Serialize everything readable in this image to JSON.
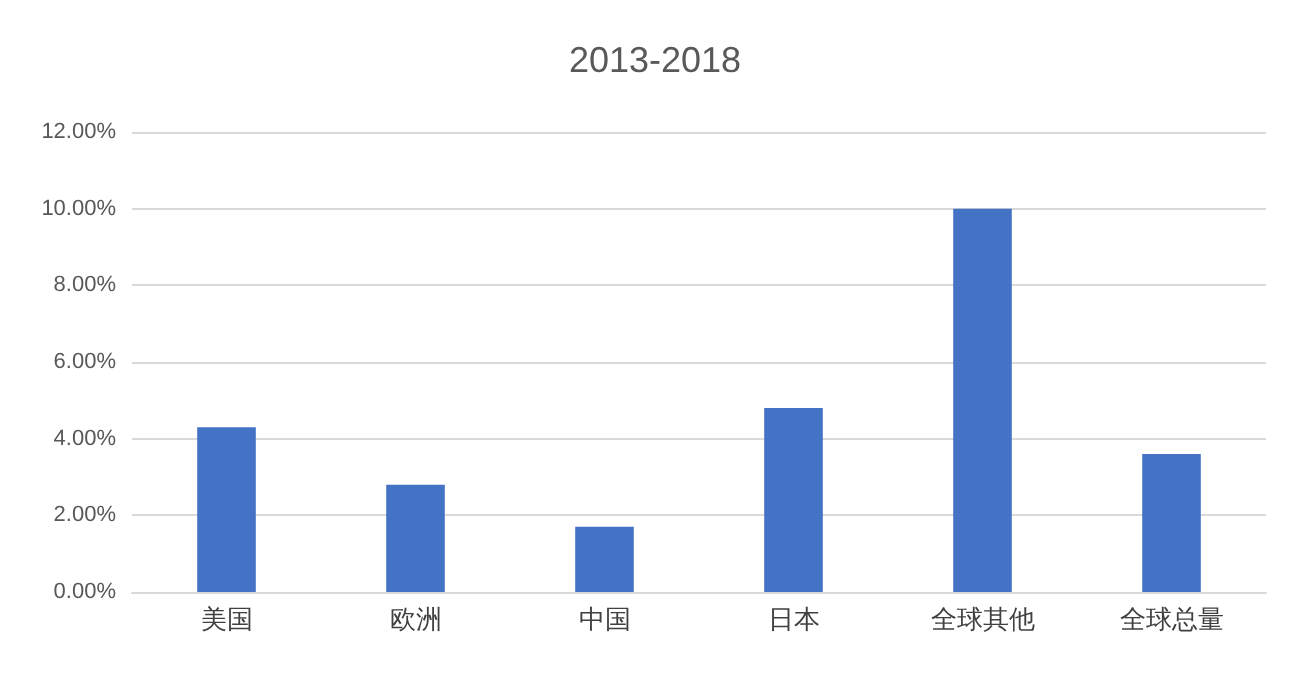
{
  "chart_data": {
    "type": "bar",
    "title": "2013-2018",
    "categories": [
      "美国",
      "欧洲",
      "中国",
      "日本",
      "全球其他",
      "全球总量"
    ],
    "values": [
      4.3,
      2.8,
      1.7,
      4.8,
      10.0,
      3.6
    ],
    "color": "#4472c4",
    "ylim": [
      0,
      12
    ],
    "yticks": [
      {
        "value": 0,
        "label": "0.00%"
      },
      {
        "value": 2,
        "label": "2.00%"
      },
      {
        "value": 4,
        "label": "4.00%"
      },
      {
        "value": 6,
        "label": "6.00%"
      },
      {
        "value": 8,
        "label": "8.00%"
      },
      {
        "value": 10,
        "label": "10.00%"
      },
      {
        "value": 12,
        "label": "12.00%"
      }
    ],
    "grid": true
  }
}
